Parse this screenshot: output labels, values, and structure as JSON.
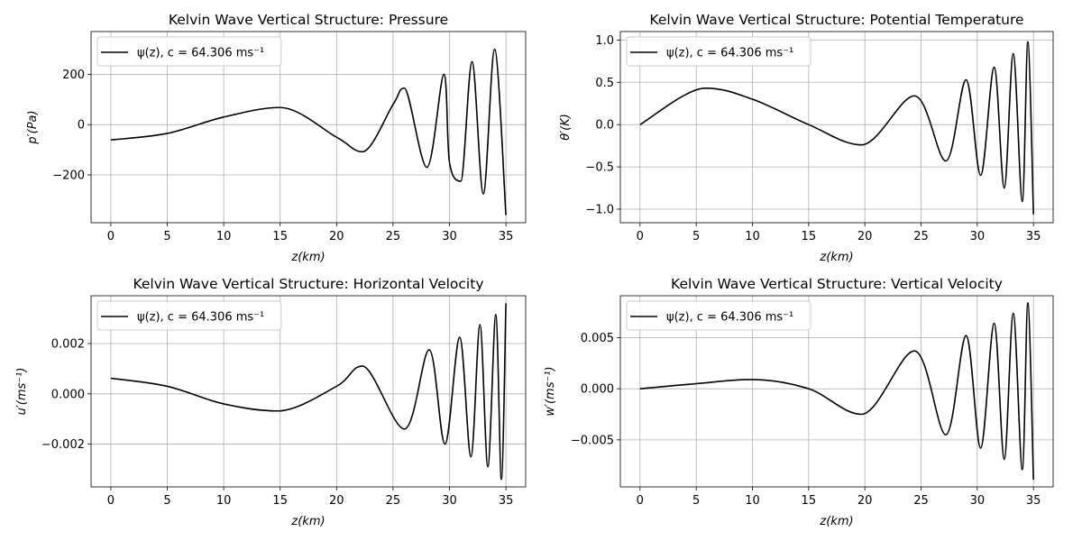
{
  "figure": {
    "legend_label": "ψ(z), c = 64.306 ms⁻¹"
  },
  "chart_data": [
    {
      "type": "line",
      "title": "Kelvin Wave Vertical Structure: Pressure",
      "xlabel": "z(km)",
      "ylabel": "p′(Pa)",
      "xlim": [
        -1.75,
        36.75
      ],
      "ylim": [
        -390,
        370
      ],
      "xticks": [
        "0",
        "5",
        "10",
        "15",
        "20",
        "25",
        "30",
        "35"
      ],
      "yticks": [
        {
          "v": -200,
          "label": "−200"
        },
        {
          "v": 0,
          "label": "0"
        },
        {
          "v": 200,
          "label": "200"
        }
      ],
      "grid": true,
      "legend": "upper-left",
      "series": [
        {
          "name": "ψ(z), c = 64.306 ms⁻¹",
          "variable": "p",
          "y0": -61,
          "amp_exponent": -0.5,
          "x": [
            0,
            5,
            10,
            15,
            20,
            22.3,
            25,
            26,
            28,
            29.5,
            30,
            31,
            32,
            33,
            34,
            35
          ],
          "y": [
            -61,
            -35,
            30,
            68,
            -50,
            -108,
            80,
            145,
            -170,
            200,
            -150,
            -225,
            250,
            -275,
            300,
            -360
          ]
        }
      ]
    },
    {
      "type": "line",
      "title": "Kelvin Wave Vertical Structure: Potential Temperature",
      "xlabel": "z(km)",
      "ylabel": "θ′(K)",
      "xlim": [
        -1.75,
        36.75
      ],
      "ylim": [
        -1.16,
        1.1
      ],
      "xticks": [
        "0",
        "5",
        "10",
        "15",
        "20",
        "25",
        "30",
        "35"
      ],
      "yticks": [
        {
          "v": -1.0,
          "label": "−1.0"
        },
        {
          "v": -0.5,
          "label": "−0.5"
        },
        {
          "v": 0.0,
          "label": "0.0"
        },
        {
          "v": 0.5,
          "label": "0.5"
        },
        {
          "v": 1.0,
          "label": "1.0"
        }
      ],
      "grid": true,
      "legend": "upper-left",
      "series": [
        {
          "name": "ψ(z), c = 64.306 ms⁻¹",
          "variable": "theta",
          "y0": 0,
          "amp_exponent": -0.6,
          "x": [
            0,
            5.8,
            10,
            15,
            19.7,
            24.4,
            27.2,
            29,
            30.3,
            31.5,
            32.4,
            33.2,
            34,
            34.5,
            35
          ],
          "y": [
            0,
            0.43,
            0.3,
            0.0,
            -0.24,
            0.34,
            -0.43,
            0.53,
            -0.6,
            0.68,
            -0.75,
            0.84,
            -0.91,
            0.98,
            -1.06
          ]
        }
      ]
    },
    {
      "type": "line",
      "title": "Kelvin Wave Vertical Structure: Horizontal Velocity",
      "xlabel": "z(km)",
      "ylabel": "u′(ms⁻¹)",
      "xlim": [
        -1.75,
        36.75
      ],
      "ylim": [
        -0.0037,
        0.0039
      ],
      "xticks": [
        "0",
        "5",
        "10",
        "15",
        "20",
        "25",
        "30",
        "35"
      ],
      "yticks": [
        {
          "v": -0.002,
          "label": "−0.002"
        },
        {
          "v": 0.0,
          "label": "0.000"
        },
        {
          "v": 0.002,
          "label": "0.002"
        }
      ],
      "grid": true,
      "legend": "upper-left",
      "series": [
        {
          "name": "ψ(z), c = 64.306 ms⁻¹",
          "variable": "u",
          "y0": 0.00062,
          "amp_exponent": -0.5,
          "x": [
            0,
            5,
            10,
            14.8,
            20,
            22.3,
            26,
            28.2,
            29.6,
            30.9,
            31.9,
            32.7,
            33.4,
            34.1,
            34.6,
            35
          ],
          "y": [
            0.00062,
            0.0003,
            -0.0004,
            -0.00068,
            0.0003,
            0.0011,
            -0.0014,
            0.00175,
            -0.002,
            0.00225,
            -0.0025,
            0.00275,
            -0.0029,
            0.00315,
            -0.0034,
            0.0036
          ]
        }
      ]
    },
    {
      "type": "line",
      "title": "Kelvin Wave Vertical Structure: Vertical Velocity",
      "xlabel": "z(km)",
      "ylabel": "w′(ms⁻¹)",
      "xlim": [
        -1.75,
        36.75
      ],
      "ylim": [
        -0.0096,
        0.0091
      ],
      "xticks": [
        "0",
        "5",
        "10",
        "15",
        "20",
        "25",
        "30",
        "35"
      ],
      "yticks": [
        {
          "v": -0.005,
          "label": "−0.005"
        },
        {
          "v": 0.0,
          "label": "0.000"
        },
        {
          "v": 0.005,
          "label": "0.005"
        }
      ],
      "grid": true,
      "legend": "upper-left",
      "series": [
        {
          "name": "ψ(z), c = 64.306 ms⁻¹",
          "variable": "w",
          "y0": 0,
          "amp_exponent": -0.6,
          "x": [
            0,
            5,
            9.8,
            15,
            19.7,
            24.4,
            27.2,
            29,
            30.3,
            31.5,
            32.4,
            33.2,
            34,
            34.5,
            35
          ],
          "y": [
            0,
            0.0005,
            0.0009,
            0.0,
            -0.0025,
            0.0037,
            -0.0045,
            0.0052,
            -0.0058,
            0.0064,
            -0.0069,
            0.0074,
            -0.0079,
            0.0084,
            -0.0089
          ]
        }
      ]
    }
  ]
}
